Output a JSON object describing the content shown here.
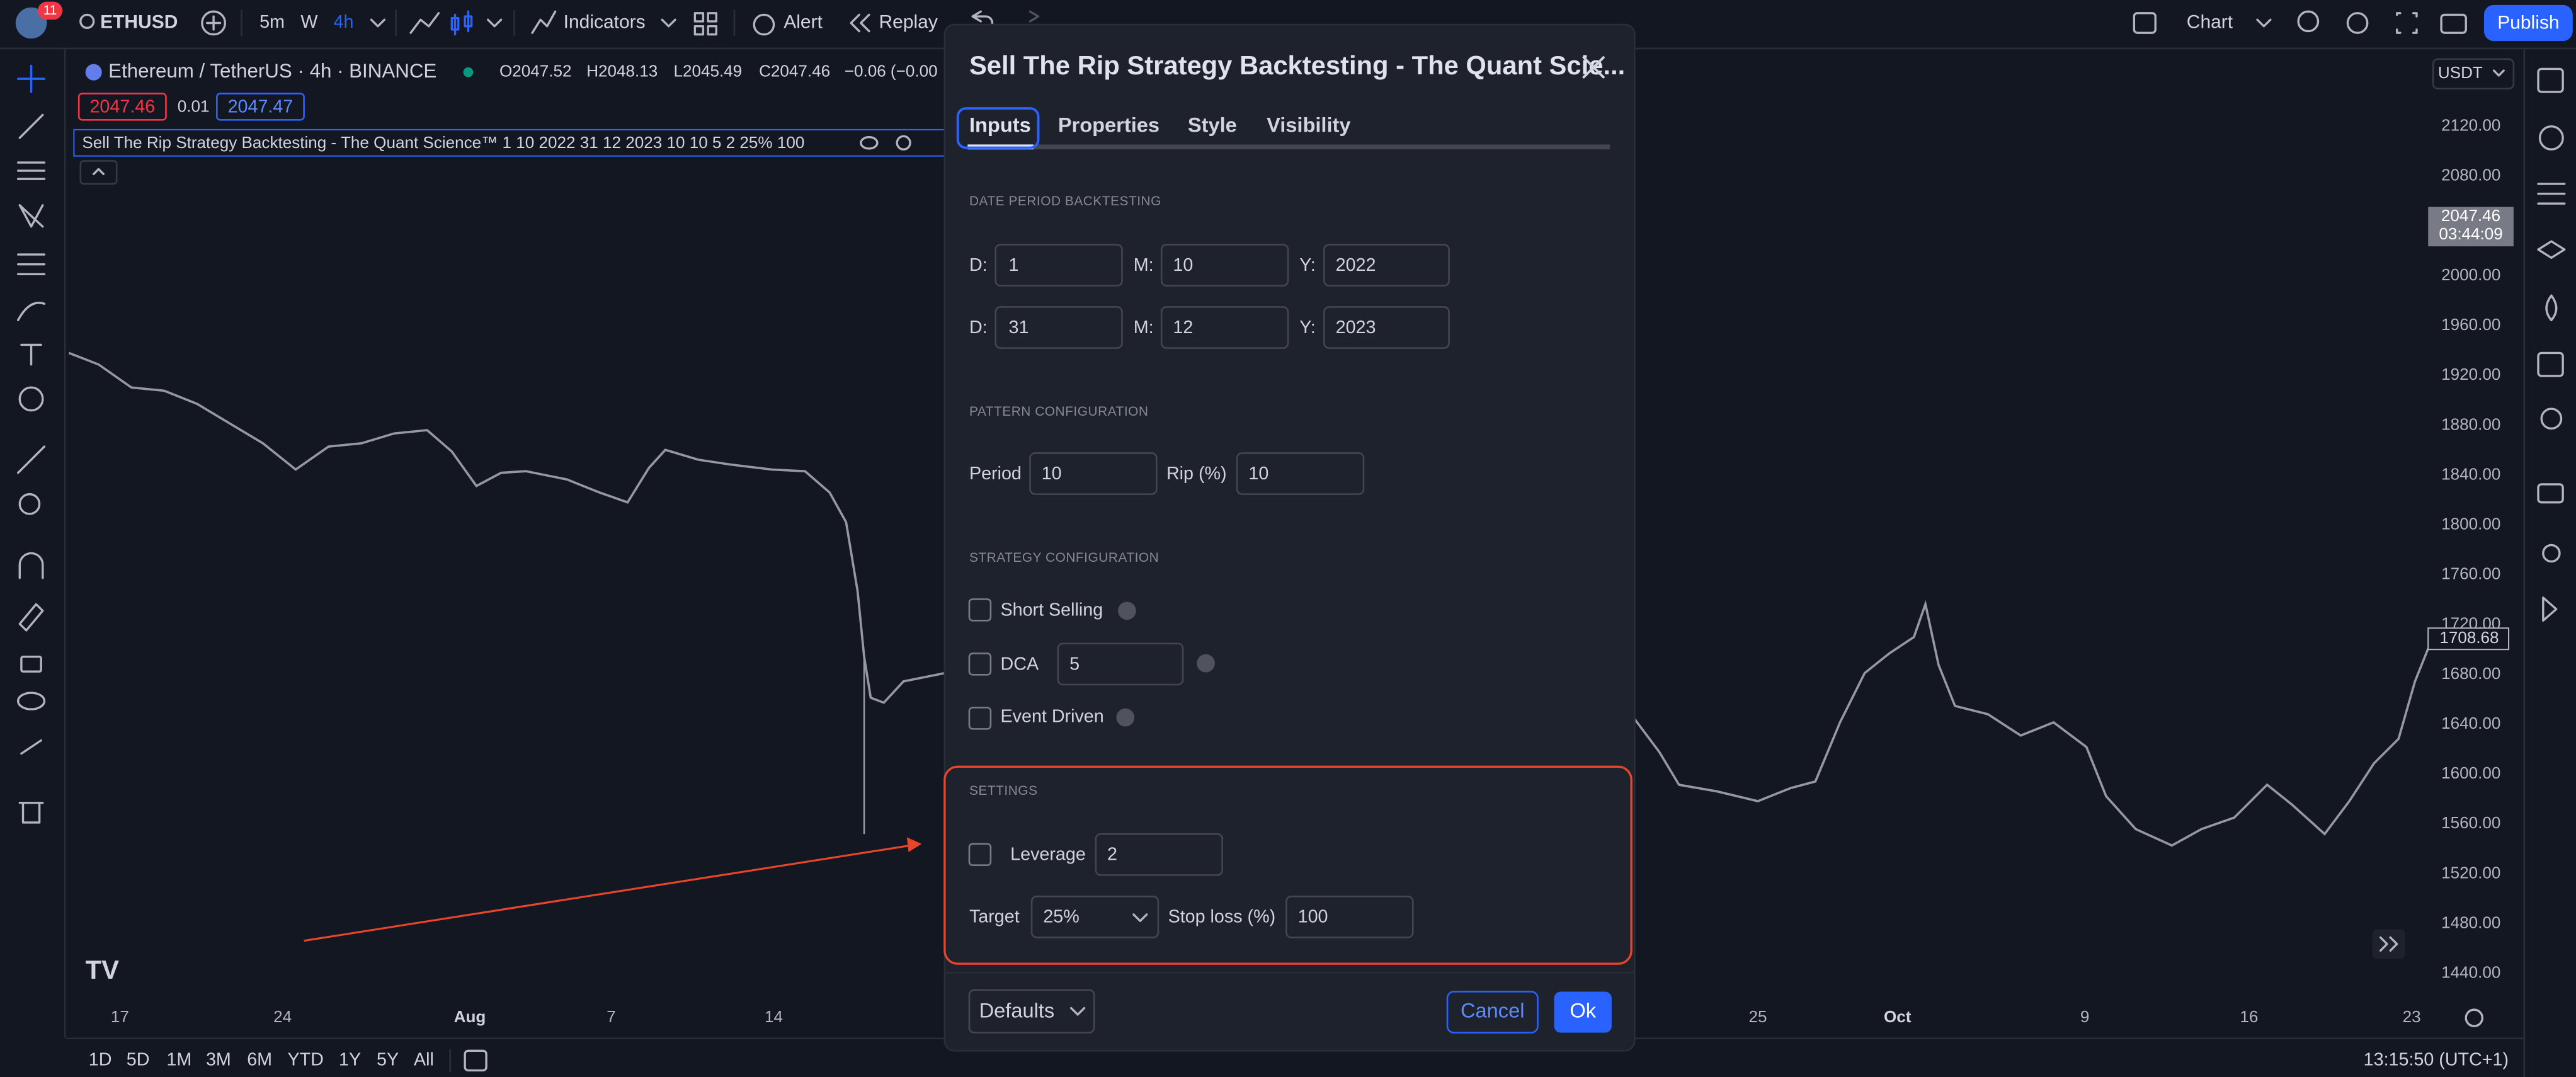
{
  "toolbar": {
    "symbol": "ETHUSD",
    "notifications": "11",
    "intervals": [
      "5m",
      "W",
      "4h"
    ],
    "indicators": "Indicators",
    "alert": "Alert",
    "replay": "Replay",
    "layout": "Chart",
    "publish": "Publish"
  },
  "symbol_header": {
    "name": "Ethereum / TetherUS · 4h · BINANCE",
    "open": "O2047.52",
    "high": "H2048.13",
    "low": "L2045.49",
    "close": "C2047.46",
    "change": "−0.06 (−0.00",
    "bid": "2047.46",
    "spread": "0.01",
    "ask": "2047.47"
  },
  "indicator_legend": "Sell The Rip Strategy Backtesting - The Quant Science™ 1 10 2022 31 12 2023 10 10 5 2 25% 100",
  "price_axis": {
    "currency": "USDT",
    "labels": [
      "2120.00",
      "2080.00",
      "2000.00",
      "1960.00",
      "1920.00",
      "1880.00",
      "1840.00",
      "1800.00",
      "1760.00",
      "1720.00",
      "1680.00",
      "1640.00",
      "1600.00",
      "1560.00",
      "1520.00",
      "1480.00",
      "1440.00"
    ],
    "last_price": "2047.46",
    "countdown": "03:44:09",
    "marker": "1708.68"
  },
  "time_axis": [
    "17",
    "24",
    "Aug",
    "7",
    "14",
    "25",
    "Oct",
    "9",
    "16",
    "23"
  ],
  "ranges": [
    "1D",
    "5D",
    "1M",
    "3M",
    "6M",
    "YTD",
    "1Y",
    "5Y",
    "All"
  ],
  "clock": "13:15:50 (UTC+1)",
  "dialog": {
    "title": "Sell The Rip Strategy Backtesting - The Quant Scie...",
    "tabs": [
      "Inputs",
      "Properties",
      "Style",
      "Visibility"
    ],
    "date_section": "DATE PERIOD BACKTESTING",
    "start": {
      "d_label": "D:",
      "d": "1",
      "m_label": "M:",
      "m": "10",
      "y_label": "Y:",
      "y": "2022"
    },
    "end": {
      "d_label": "D:",
      "d": "31",
      "m_label": "M:",
      "m": "12",
      "y_label": "Y:",
      "y": "2023"
    },
    "pattern_section": "PATTERN CONFIGURATION",
    "period_label": "Period",
    "period": "10",
    "rip_label": "Rip (%)",
    "rip": "10",
    "strategy_section": "STRATEGY CONFIGURATION",
    "short_selling": "Short Selling",
    "dca_label": "DCA",
    "dca": "5",
    "event_driven": "Event Driven",
    "settings_section": "SETTINGS",
    "leverage_label": "Leverage",
    "leverage": "2",
    "target_label": "Target",
    "target": "25%",
    "stop_loss_label": "Stop loss (%)",
    "stop_loss": "100",
    "defaults": "Defaults",
    "cancel": "Cancel",
    "ok": "Ok"
  }
}
